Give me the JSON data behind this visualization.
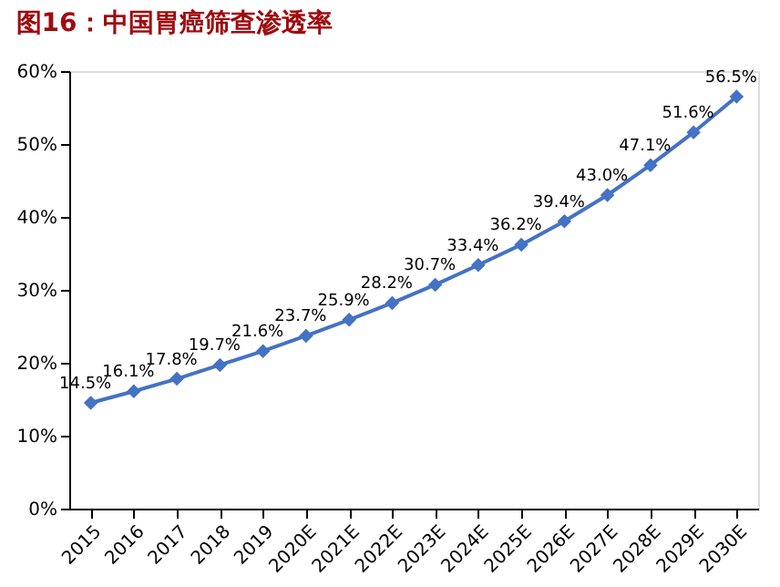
{
  "chart_data": {
    "type": "line",
    "title": "图16：中国胃癌筛查渗透率",
    "categories": [
      "2015",
      "2016",
      "2017",
      "2018",
      "2019",
      "2020E",
      "2021E",
      "2022E",
      "2023E",
      "2024E",
      "2025E",
      "2026E",
      "2027E",
      "2028E",
      "2029E",
      "2030E"
    ],
    "series": [
      {
        "color": "#4472c4",
        "values": [
          14.5,
          16.1,
          17.8,
          19.7,
          21.6,
          23.7,
          25.9,
          28.2,
          30.7,
          33.4,
          36.2,
          39.4,
          43.0,
          47.1,
          51.6,
          56.5
        ],
        "value_labels": [
          "14.5%",
          "16.1%",
          "17.8%",
          "19.7%",
          "21.6%",
          "23.7%",
          "25.9%",
          "28.2%",
          "30.7%",
          "33.4%",
          "36.2%",
          "39.4%",
          "43.0%",
          "47.1%",
          "51.6%",
          "56.5%"
        ]
      }
    ],
    "ylim": [
      0,
      60
    ],
    "yticks": [
      {
        "value": 0,
        "label": "0%"
      },
      {
        "value": 10,
        "label": "10%"
      },
      {
        "value": 20,
        "label": "20%"
      },
      {
        "value": 30,
        "label": "30%"
      },
      {
        "value": 40,
        "label": "40%"
      },
      {
        "value": 50,
        "label": "50%"
      },
      {
        "value": 60,
        "label": "60%"
      }
    ],
    "marker": "diamond",
    "line_style": "solid",
    "grid": false
  }
}
